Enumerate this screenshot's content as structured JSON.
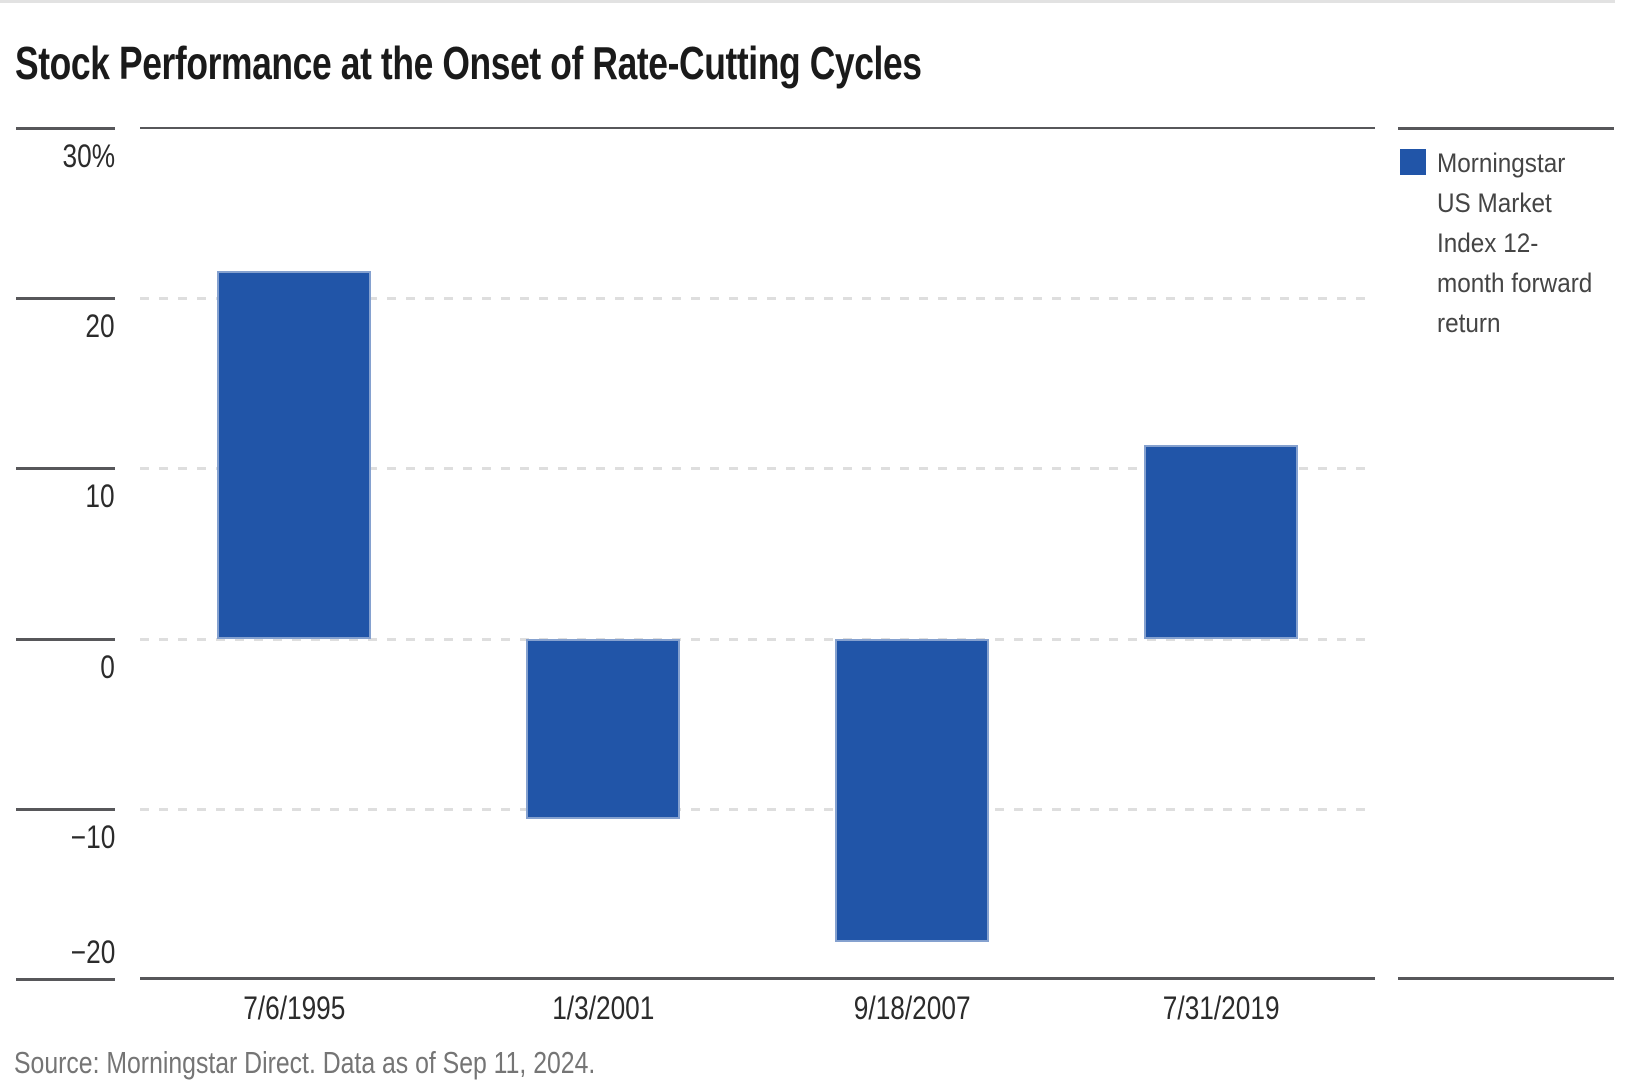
{
  "page": {
    "title": "Stock Performance at the Onset of Rate-Cutting Cycles",
    "source_note": "Source: Morningstar Direct. Data as of Sep 11, 2024."
  },
  "legend": {
    "label": "Morningstar US Market Index 12-month forward return",
    "label_lines": [
      "Morningstar",
      "US Market",
      "Index 12-",
      "month forward",
      "return"
    ]
  },
  "chart_data": {
    "type": "bar",
    "title": "Stock Performance at the Onset of Rate-Cutting Cycles",
    "categories": [
      "7/6/1995",
      "1/3/2001",
      "9/18/2007",
      "7/31/2019"
    ],
    "series": [
      {
        "name": "Morningstar US Market Index 12-month forward return",
        "values": [
          21.6,
          -10.6,
          -17.8,
          11.4
        ]
      }
    ],
    "xlabel": "",
    "ylabel": "",
    "ylim": [
      -20,
      30
    ],
    "yticks": {
      "values": [
        30,
        20,
        10,
        0,
        -10,
        -20
      ],
      "labels": [
        "30%",
        "20",
        "10",
        "0",
        "−10",
        "−20"
      ]
    },
    "grid": "horizontal-dashed",
    "legend_position": "right"
  },
  "colors": {
    "bar": "#2155A8",
    "axis_line": "#57575A",
    "gridline": "#DEDEDE",
    "title_text": "#1A1A1A",
    "axis_text": "#2B2B2B",
    "legend_text": "#454545",
    "source_text": "#757575",
    "top_rule": "#E2E2E2"
  }
}
